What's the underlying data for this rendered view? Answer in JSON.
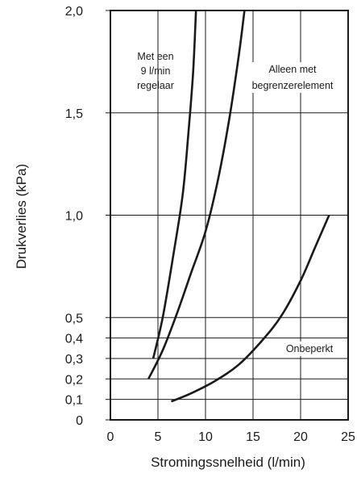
{
  "chart_data": {
    "type": "line",
    "xlabel": "Stromingssnelheid (l/min)",
    "ylabel": "Drukverlies (kPa)",
    "xlim": [
      0,
      25
    ],
    "ylim": [
      0,
      2.0
    ],
    "grid": true,
    "x_ticks": [
      "0",
      "5",
      "10",
      "15",
      "20",
      "25"
    ],
    "y_ticks": [
      {
        "value": 0,
        "label": "0"
      },
      {
        "value": 0.1,
        "label": "0,1"
      },
      {
        "value": 0.2,
        "label": "0,2"
      },
      {
        "value": 0.3,
        "label": "0,3"
      },
      {
        "value": 0.4,
        "label": "0,4"
      },
      {
        "value": 0.5,
        "label": "0,5"
      },
      {
        "value": 1.0,
        "label": "1,0"
      },
      {
        "value": 1.5,
        "label": "1,5"
      },
      {
        "value": 2.0,
        "label": "2,0"
      }
    ],
    "series": [
      {
        "name": "Met een 9 l/min regelaar",
        "label_lines": [
          "Met een",
          "9 l/min",
          "regelaar"
        ],
        "points": [
          [
            4.5,
            0.3
          ],
          [
            5.5,
            0.5
          ],
          [
            6.6,
            0.8
          ],
          [
            7.6,
            1.1
          ],
          [
            8.2,
            1.4
          ],
          [
            8.7,
            1.7
          ],
          [
            9.0,
            2.0
          ]
        ]
      },
      {
        "name": "Alleen met begrenzerelement",
        "label_lines": [
          "Alleen met",
          "begrenzerelement"
        ],
        "points": [
          [
            4.0,
            0.2
          ],
          [
            5.5,
            0.34
          ],
          [
            7.0,
            0.52
          ],
          [
            8.5,
            0.72
          ],
          [
            10.0,
            0.92
          ],
          [
            11.3,
            1.17
          ],
          [
            12.5,
            1.47
          ],
          [
            13.5,
            1.78
          ],
          [
            14.1,
            2.0
          ]
        ]
      },
      {
        "name": "Onbeperkt",
        "label_lines": [
          "Onbeperkt"
        ],
        "points": [
          [
            6.4,
            0.09
          ],
          [
            8.5,
            0.13
          ],
          [
            11.0,
            0.19
          ],
          [
            13.5,
            0.27
          ],
          [
            16.0,
            0.39
          ],
          [
            18.0,
            0.51
          ],
          [
            20.0,
            0.68
          ],
          [
            21.5,
            0.84
          ],
          [
            23.0,
            1.0
          ]
        ]
      }
    ]
  }
}
